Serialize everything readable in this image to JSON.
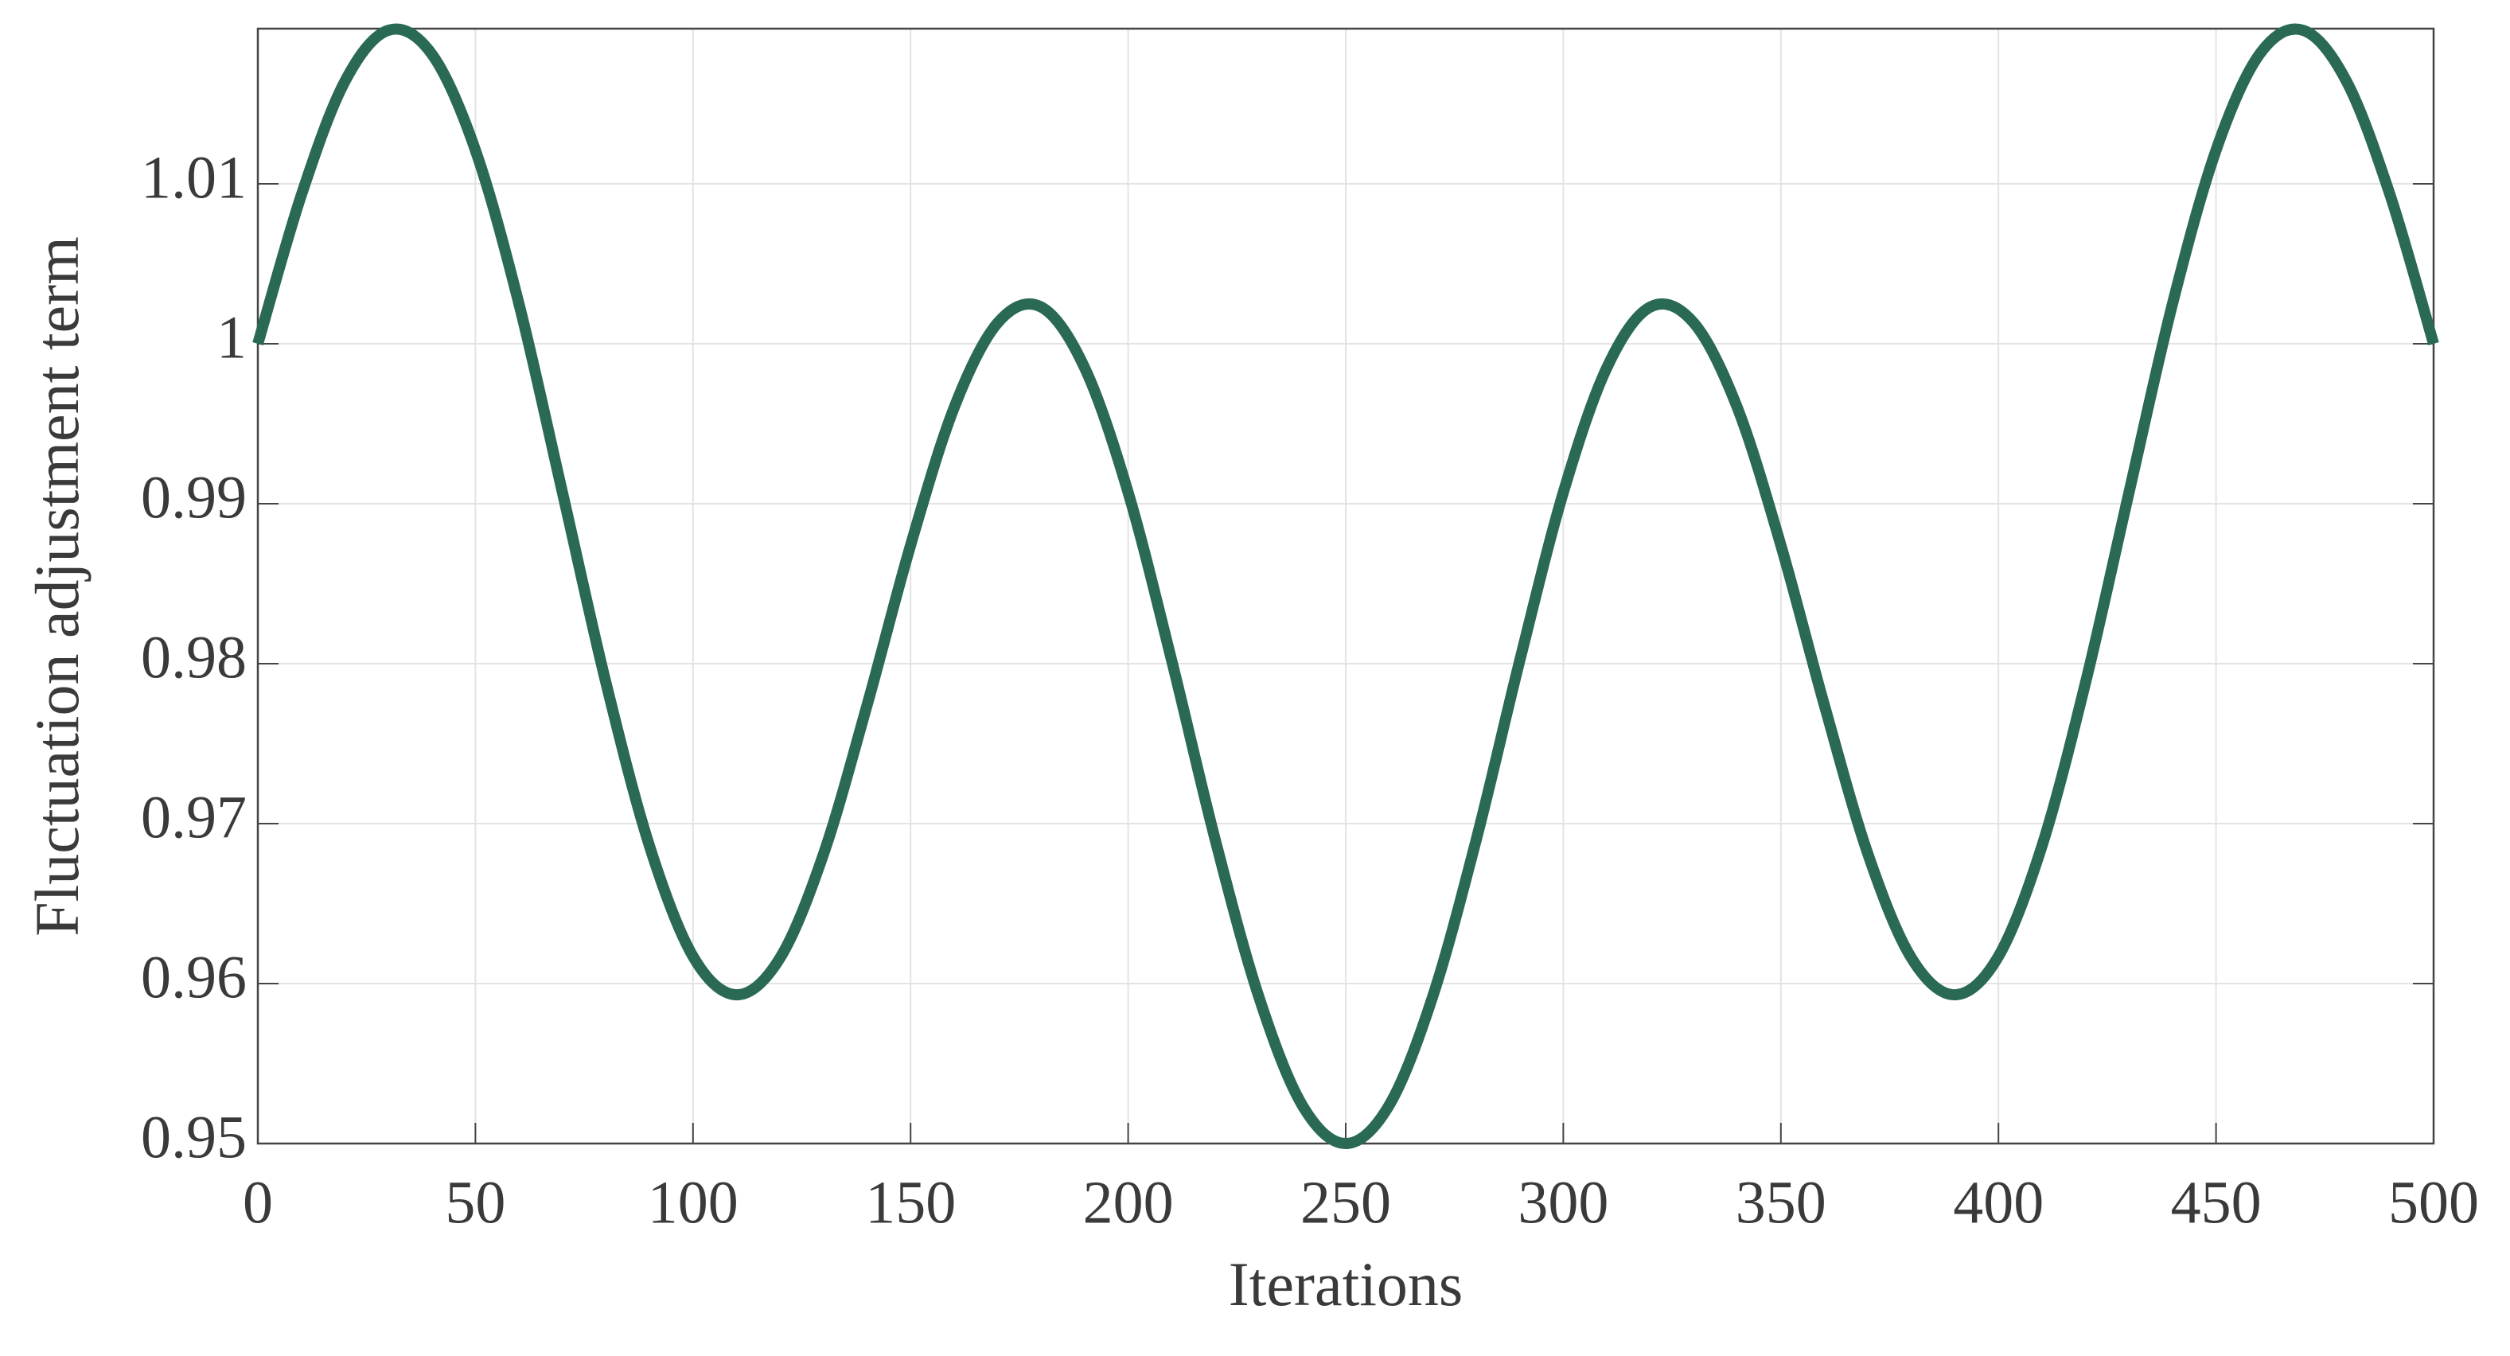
{
  "chart_data": {
    "type": "line",
    "x_label": "Iterations",
    "y_label": "Fluctuation adjustment term",
    "x": [
      0,
      10,
      20,
      30,
      40,
      50,
      60,
      70,
      80,
      90,
      100,
      110,
      120,
      130,
      140,
      150,
      160,
      170,
      180,
      190,
      200,
      210,
      220,
      230,
      240,
      250,
      260,
      270,
      280,
      290,
      300,
      310,
      320,
      330,
      340,
      350,
      360,
      370,
      380,
      390,
      400,
      410,
      420,
      430,
      440,
      450,
      460,
      470,
      480,
      490,
      500
    ],
    "series": [
      {
        "color": "#2a6a55",
        "values": [
          1.0,
          1.0093,
          1.0164,
          1.0196,
          1.0181,
          1.0121,
          1.0025,
          0.9907,
          0.9788,
          0.9686,
          0.9617,
          0.9593,
          0.9616,
          0.9681,
          0.9774,
          0.9874,
          0.996,
          1.0013,
          1.0023,
          0.9985,
          0.9907,
          0.9802,
          0.969,
          0.9592,
          0.9524,
          0.95,
          0.9524,
          0.9592,
          0.969,
          0.9802,
          0.9907,
          0.9985,
          1.0023,
          1.0013,
          0.996,
          0.9874,
          0.9774,
          0.9681,
          0.9616,
          0.9593,
          0.9617,
          0.9686,
          0.9788,
          0.9907,
          1.0025,
          1.0121,
          1.0181,
          1.0196,
          1.0164,
          1.0093,
          1.0
        ]
      }
    ],
    "xlim": [
      0,
      500
    ],
    "ylim": [
      0.95,
      1.0197
    ],
    "xticks": [
      0,
      50,
      100,
      150,
      200,
      250,
      300,
      350,
      400,
      450,
      500
    ],
    "yticks": [
      0.95,
      0.96,
      0.97,
      0.98,
      0.99,
      1,
      1.01
    ],
    "grid": true
  }
}
